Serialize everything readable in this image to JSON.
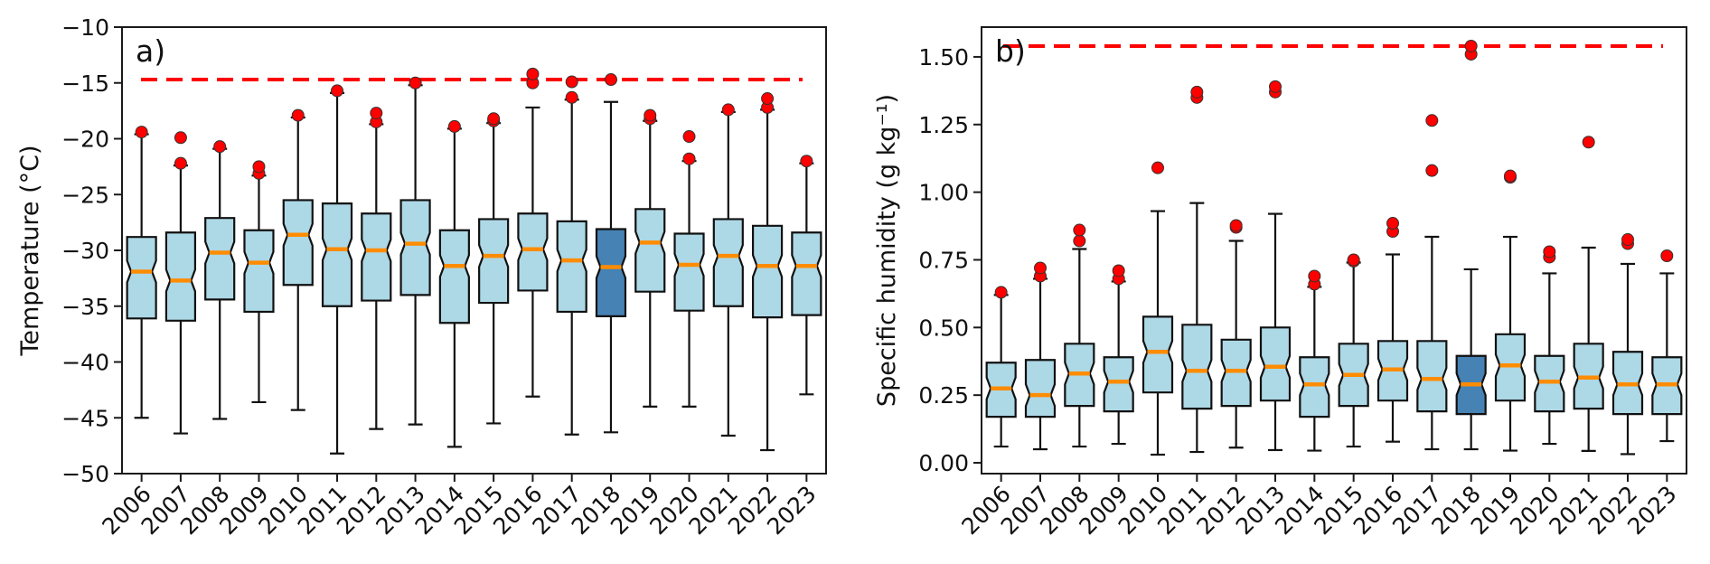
{
  "chart_data": [
    {
      "type": "boxplot",
      "panel_label": "a)",
      "title": "",
      "xlabel": "",
      "ylabel": "Temperature (°C)",
      "ylim": [
        -50,
        -10
      ],
      "yticks": [
        -50,
        -45,
        -40,
        -35,
        -30,
        -25,
        -20,
        -15,
        -10
      ],
      "ytick_labels": [
        "−50",
        "−45",
        "−40",
        "−35",
        "−30",
        "−25",
        "−20",
        "−15",
        "−10"
      ],
      "grid": false,
      "notched": true,
      "reference_line": {
        "value": -14.7,
        "style": "dashed",
        "color": "#ff0000"
      },
      "highlight_category": "2018",
      "colors": {
        "box_fill": "#add8e6",
        "highlight_fill": "#4682b4",
        "median": "#ff8c00",
        "flier": "#ff0000"
      },
      "categories": [
        "2006",
        "2007",
        "2008",
        "2009",
        "2010",
        "2011",
        "2012",
        "2013",
        "2014",
        "2015",
        "2016",
        "2017",
        "2018",
        "2019",
        "2020",
        "2021",
        "2022",
        "2023"
      ],
      "boxes": [
        {
          "whislo": -45.0,
          "q1": -36.1,
          "med": -31.9,
          "q3": -28.8,
          "whishi": -19.6,
          "fliers": [
            -19.4
          ]
        },
        {
          "whislo": -46.4,
          "q1": -36.3,
          "med": -32.7,
          "q3": -28.4,
          "whishi": -22.4,
          "fliers": [
            -22.2,
            -19.9
          ]
        },
        {
          "whislo": -45.1,
          "q1": -34.4,
          "med": -30.2,
          "q3": -27.1,
          "whishi": -20.9,
          "fliers": [
            -20.7
          ]
        },
        {
          "whislo": -43.6,
          "q1": -35.5,
          "med": -31.1,
          "q3": -28.2,
          "whishi": -23.3,
          "fliers": [
            -23.1,
            -22.5
          ]
        },
        {
          "whislo": -44.3,
          "q1": -33.1,
          "med": -28.6,
          "q3": -25.5,
          "whishi": -18.1,
          "fliers": [
            -17.9
          ]
        },
        {
          "whislo": -48.2,
          "q1": -35.0,
          "med": -29.9,
          "q3": -25.8,
          "whishi": -15.9,
          "fliers": [
            -15.7
          ]
        },
        {
          "whislo": -46.0,
          "q1": -34.5,
          "med": -30.0,
          "q3": -26.7,
          "whishi": -18.7,
          "fliers": [
            -18.5,
            -17.7
          ]
        },
        {
          "whislo": -45.6,
          "q1": -34.0,
          "med": -29.4,
          "q3": -25.5,
          "whishi": -15.2,
          "fliers": [
            -15.0
          ]
        },
        {
          "whislo": -47.6,
          "q1": -36.5,
          "med": -31.4,
          "q3": -28.2,
          "whishi": -19.1,
          "fliers": [
            -18.9
          ]
        },
        {
          "whislo": -45.5,
          "q1": -34.7,
          "med": -30.5,
          "q3": -27.2,
          "whishi": -18.6,
          "fliers": [
            -18.4,
            -18.2
          ]
        },
        {
          "whislo": -43.1,
          "q1": -33.6,
          "med": -29.9,
          "q3": -26.7,
          "whishi": -17.2,
          "fliers": [
            -15.0,
            -14.2
          ]
        },
        {
          "whislo": -46.5,
          "q1": -35.5,
          "med": -30.9,
          "q3": -27.4,
          "whishi": -16.5,
          "fliers": [
            -16.3,
            -14.9
          ]
        },
        {
          "whislo": -46.3,
          "q1": -35.9,
          "med": -31.5,
          "q3": -28.1,
          "whishi": -16.7,
          "fliers": [
            -14.7
          ]
        },
        {
          "whislo": -44.0,
          "q1": -33.7,
          "med": -29.3,
          "q3": -26.3,
          "whishi": -18.4,
          "fliers": [
            -18.2,
            -17.9
          ]
        },
        {
          "whislo": -44.0,
          "q1": -35.4,
          "med": -31.3,
          "q3": -28.5,
          "whishi": -22.0,
          "fliers": [
            -21.8,
            -19.8
          ]
        },
        {
          "whislo": -46.6,
          "q1": -35.0,
          "med": -30.5,
          "q3": -27.2,
          "whishi": -17.6,
          "fliers": [
            -17.4
          ]
        },
        {
          "whislo": -47.9,
          "q1": -36.0,
          "med": -31.4,
          "q3": -27.8,
          "whishi": -17.4,
          "fliers": [
            -17.2,
            -16.4
          ]
        },
        {
          "whislo": -42.9,
          "q1": -35.8,
          "med": -31.4,
          "q3": -28.4,
          "whishi": -22.2,
          "fliers": [
            -22.0
          ]
        }
      ]
    },
    {
      "type": "boxplot",
      "panel_label": "b)",
      "title": "",
      "xlabel": "",
      "ylabel": "Specific humidity (g kg⁻¹)",
      "ylim": [
        -0.04,
        1.61
      ],
      "yticks": [
        0.0,
        0.25,
        0.5,
        0.75,
        1.0,
        1.25,
        1.5
      ],
      "ytick_labels": [
        "0.00",
        "0.25",
        "0.50",
        "0.75",
        "1.00",
        "1.25",
        "1.50"
      ],
      "grid": false,
      "notched": true,
      "reference_line": {
        "value": 1.54,
        "style": "dashed",
        "color": "#ff0000"
      },
      "highlight_category": "2018",
      "colors": {
        "box_fill": "#add8e6",
        "highlight_fill": "#4682b4",
        "median": "#ff8c00",
        "flier": "#ff0000"
      },
      "categories": [
        "2006",
        "2007",
        "2008",
        "2009",
        "2010",
        "2011",
        "2012",
        "2013",
        "2014",
        "2015",
        "2016",
        "2017",
        "2018",
        "2019",
        "2020",
        "2021",
        "2022",
        "2023"
      ],
      "boxes": [
        {
          "whislo": 0.06,
          "q1": 0.17,
          "med": 0.275,
          "q3": 0.37,
          "whishi": 0.62,
          "fliers": [
            0.63
          ]
        },
        {
          "whislo": 0.05,
          "q1": 0.17,
          "med": 0.25,
          "q3": 0.38,
          "whishi": 0.68,
          "fliers": [
            0.69,
            0.72
          ]
        },
        {
          "whislo": 0.06,
          "q1": 0.21,
          "med": 0.33,
          "q3": 0.44,
          "whishi": 0.79,
          "fliers": [
            0.82,
            0.86
          ]
        },
        {
          "whislo": 0.07,
          "q1": 0.19,
          "med": 0.3,
          "q3": 0.39,
          "whishi": 0.67,
          "fliers": [
            0.68,
            0.71
          ]
        },
        {
          "whislo": 0.03,
          "q1": 0.26,
          "med": 0.41,
          "q3": 0.54,
          "whishi": 0.93,
          "fliers": [
            1.09
          ]
        },
        {
          "whislo": 0.04,
          "q1": 0.2,
          "med": 0.34,
          "q3": 0.51,
          "whishi": 0.96,
          "fliers": [
            1.35,
            1.37
          ]
        },
        {
          "whislo": 0.056,
          "q1": 0.21,
          "med": 0.34,
          "q3": 0.455,
          "whishi": 0.82,
          "fliers": [
            0.87,
            0.877
          ]
        },
        {
          "whislo": 0.047,
          "q1": 0.23,
          "med": 0.355,
          "q3": 0.5,
          "whishi": 0.92,
          "fliers": [
            1.37,
            1.39
          ]
        },
        {
          "whislo": 0.045,
          "q1": 0.17,
          "med": 0.29,
          "q3": 0.39,
          "whishi": 0.65,
          "fliers": [
            0.66,
            0.69
          ]
        },
        {
          "whislo": 0.06,
          "q1": 0.21,
          "med": 0.325,
          "q3": 0.44,
          "whishi": 0.74,
          "fliers": [
            0.745,
            0.75
          ]
        },
        {
          "whislo": 0.078,
          "q1": 0.23,
          "med": 0.345,
          "q3": 0.45,
          "whishi": 0.77,
          "fliers": [
            0.855,
            0.885
          ]
        },
        {
          "whislo": 0.05,
          "q1": 0.19,
          "med": 0.31,
          "q3": 0.45,
          "whishi": 0.835,
          "fliers": [
            1.08,
            1.265
          ]
        },
        {
          "whislo": 0.05,
          "q1": 0.18,
          "med": 0.29,
          "q3": 0.395,
          "whishi": 0.715,
          "fliers": [
            1.51,
            1.54
          ]
        },
        {
          "whislo": 0.045,
          "q1": 0.23,
          "med": 0.36,
          "q3": 0.475,
          "whishi": 0.835,
          "fliers": [
            1.055,
            1.06
          ]
        },
        {
          "whislo": 0.07,
          "q1": 0.19,
          "med": 0.3,
          "q3": 0.395,
          "whishi": 0.7,
          "fliers": [
            0.76,
            0.78
          ]
        },
        {
          "whislo": 0.044,
          "q1": 0.2,
          "med": 0.315,
          "q3": 0.44,
          "whishi": 0.795,
          "fliers": [
            1.185
          ]
        },
        {
          "whislo": 0.032,
          "q1": 0.18,
          "med": 0.29,
          "q3": 0.41,
          "whishi": 0.735,
          "fliers": [
            0.81,
            0.825
          ]
        },
        {
          "whislo": 0.08,
          "q1": 0.18,
          "med": 0.29,
          "q3": 0.39,
          "whishi": 0.7,
          "fliers": [
            0.765
          ]
        }
      ]
    }
  ]
}
